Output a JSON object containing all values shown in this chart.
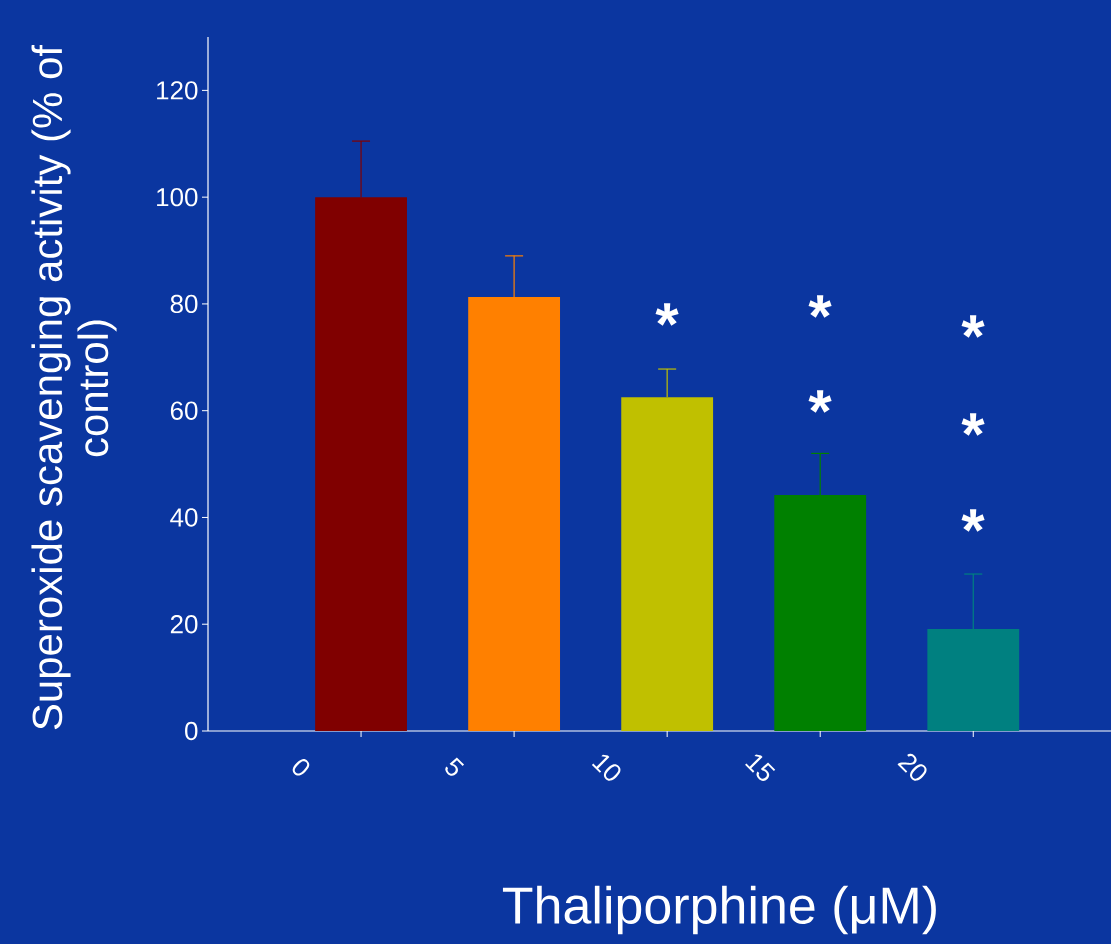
{
  "chart_data": {
    "type": "bar",
    "xlabel": "Thaliporphine (μM)",
    "ylabel": "Superoxide scavenging activity (% of control)",
    "categories": [
      "0",
      "5",
      "10",
      "15",
      "20"
    ],
    "values": [
      100,
      81.3,
      62.5,
      44.2,
      19.1
    ],
    "errors": [
      [
        100,
        110.5
      ],
      [
        81.3,
        89
      ],
      [
        62.5,
        67.8
      ],
      [
        44.2,
        52
      ],
      [
        19.1,
        29.4
      ]
    ],
    "colors": [
      "#800000",
      "#ff8000",
      "#c0c000",
      "#008000",
      "#008080"
    ],
    "ylim": [
      0,
      130
    ],
    "yticks": [
      0,
      20,
      40,
      60,
      80,
      100,
      120
    ],
    "annotations": [
      "*",
      "*",
      "*",
      "*",
      "*",
      "*"
    ]
  }
}
